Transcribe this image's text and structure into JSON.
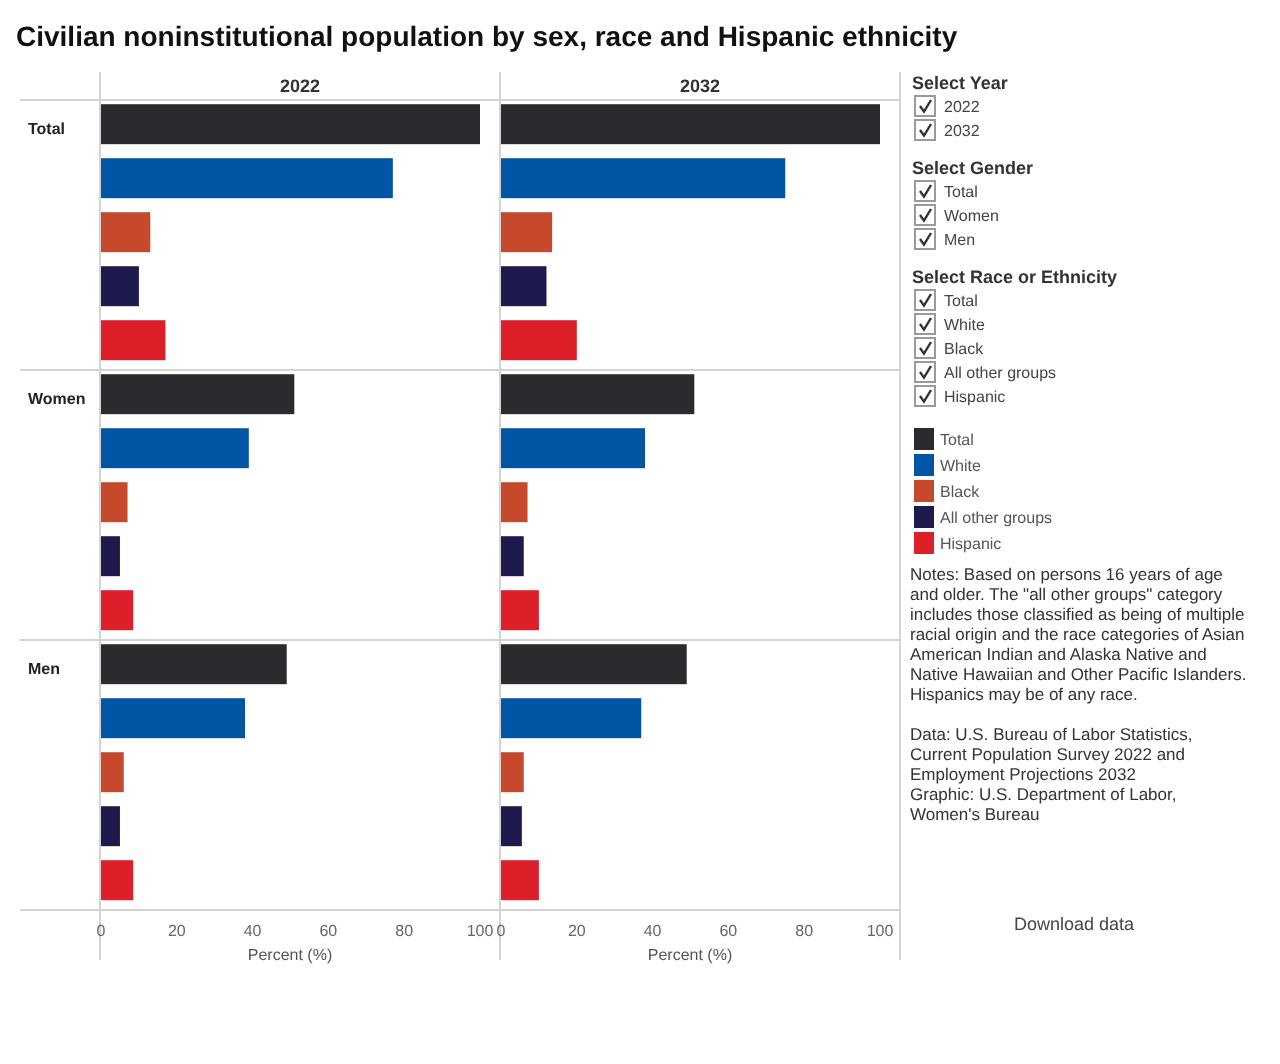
{
  "chart_data": [
    {
      "type": "bar",
      "orientation": "horizontal",
      "title": "Civilian noninstitutional population by sex, race and Hispanic ethnicity",
      "subtitle": "2022",
      "categories": [
        "Total",
        "Women",
        "Men"
      ],
      "series": [
        {
          "name": "Total",
          "color": "#2b2a2e",
          "values": [
            100,
            51,
            49
          ]
        },
        {
          "name": "White",
          "color": "#0055a5",
          "values": [
            77,
            39,
            38
          ]
        },
        {
          "name": "Black",
          "color": "#c6492b",
          "values": [
            13,
            7,
            6
          ]
        },
        {
          "name": "All other groups",
          "color": "#1f1a4e",
          "values": [
            10,
            5,
            5
          ]
        },
        {
          "name": "Hispanic",
          "color": "#dd1f2a",
          "values": [
            17,
            8.5,
            8.5
          ]
        }
      ],
      "xlim": [
        0,
        100
      ],
      "xticks": [
        0,
        20,
        40,
        60,
        80,
        100
      ],
      "xlabel": "Percent (%)",
      "legend": "right"
    },
    {
      "type": "bar",
      "orientation": "horizontal",
      "subtitle": "2032",
      "categories": [
        null,
        null,
        null
      ],
      "series": [
        {
          "color": "#2b2a2e",
          "values": [
            100,
            51,
            49
          ]
        },
        {
          "color": "#0055a5",
          "values": [
            75,
            38,
            37
          ]
        },
        {
          "color": "#c6492b",
          "values": [
            13.5,
            7,
            6
          ]
        },
        {
          "color": "#1f1a4e",
          "values": [
            12,
            6,
            5.5
          ]
        },
        {
          "color": "#dd1f2a",
          "values": [
            20,
            10,
            10
          ]
        }
      ],
      "xlim": [
        0,
        100
      ],
      "xticks": [
        0,
        20,
        40,
        60,
        80,
        100
      ],
      "xlabel": "Percent (%)"
    },
    {
      "type": "other",
      "annotations": [
        "Select Year",
        "2022",
        "2032",
        "Select Gender",
        "Total",
        "Women",
        "Men",
        "Select Race or Ethnicity",
        "Total",
        "White",
        "Black",
        "All other groups",
        "Hispanic",
        "Notes: Based on persons 16 years of age and older. The \"all other groups\" category includes those classified as being of multiple racial origin and the race categories of Asian American Indian and Alaska Native and Native Hawaiian and Other Pacific Islanders. Hispanics may be of any race.",
        "Data: U.S. Bureau of Labor Statistics, Current Population Survey 2022 and Employment Projections 2032",
        "Graphic: U.S. Department of Labor, Women's Bureau",
        "Download data"
      ]
    }
  ]
}
